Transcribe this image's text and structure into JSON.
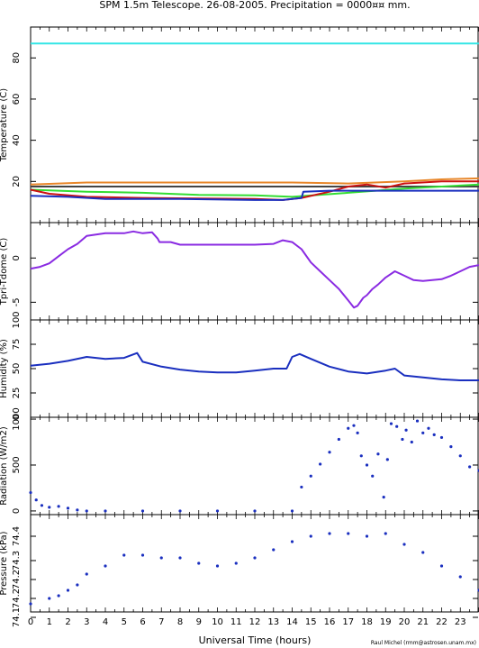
{
  "page": {
    "title": "SPM 1.5m Telescope. 26-08-2005. Precipitation = 0000¤¤ mm.",
    "xlabel": "Universal Time (hours)",
    "credit": "Raul Michel (rmm@astrosen.unam.mx)"
  },
  "colors": {
    "axis": "#000000",
    "cyan": "#33e6e6",
    "orange": "#e8872a",
    "dark": "#444444",
    "green": "#33dd33",
    "red": "#cc1111",
    "blue": "#1a2fbf",
    "purple": "#8a2be2"
  },
  "chart_data": [
    {
      "type": "line",
      "ylabel": "Temperature (C)",
      "xlim": [
        0,
        24
      ],
      "ylim": [
        0,
        95
      ],
      "xticks": [
        "0",
        "1",
        "2",
        "3",
        "4",
        "5",
        "6",
        "7",
        "8",
        "9",
        "10",
        "11",
        "12",
        "13",
        "14",
        "15",
        "16",
        "17",
        "18",
        "19",
        "20",
        "21",
        "22",
        "23"
      ],
      "yticks": [
        "20",
        "40",
        "60",
        "80"
      ],
      "series": [
        {
          "color": "cyan",
          "x": [
            0,
            24
          ],
          "y": [
            87,
            87
          ]
        },
        {
          "color": "orange",
          "x": [
            0,
            3,
            6,
            10,
            14,
            17,
            20,
            22,
            24
          ],
          "y": [
            18.5,
            19.5,
            19.5,
            19.5,
            19.5,
            19,
            20,
            21,
            21.5
          ]
        },
        {
          "color": "dark",
          "x": [
            0,
            6,
            12,
            14,
            16,
            18,
            20,
            22,
            24
          ],
          "y": [
            17.5,
            17.5,
            17.5,
            17.5,
            17.5,
            17.5,
            17.5,
            17.5,
            17.5
          ]
        },
        {
          "color": "green",
          "x": [
            0,
            3,
            6,
            9,
            12,
            14,
            17,
            20,
            24
          ],
          "y": [
            16,
            15,
            14.5,
            13.5,
            13.2,
            12.5,
            14.5,
            16.5,
            18.5
          ]
        },
        {
          "color": "red",
          "x": [
            0,
            1,
            3,
            6,
            9,
            12,
            13.5,
            14.5,
            16,
            17,
            18,
            19,
            20,
            22,
            24
          ],
          "y": [
            16,
            14,
            12.5,
            12,
            11.7,
            11.5,
            11,
            12,
            15,
            17.5,
            18.5,
            17,
            19,
            20,
            20
          ]
        },
        {
          "color": "blue",
          "x": [
            0,
            2,
            4,
            8,
            12,
            13.5,
            14.5,
            14.6,
            16,
            17.5,
            19,
            24
          ],
          "y": [
            13,
            12.5,
            11.5,
            11.5,
            11,
            11,
            12,
            15,
            15.5,
            15.5,
            15.5,
            15.5
          ]
        }
      ]
    },
    {
      "type": "line",
      "ylabel": "Tpri-Tdome (C)",
      "xlim": [
        0,
        24
      ],
      "ylim": [
        -7,
        4
      ],
      "yticks": [
        "-5",
        "0"
      ],
      "series": [
        {
          "color": "purple",
          "x": [
            0,
            0.5,
            1,
            1.5,
            2,
            2.5,
            3,
            4,
            5,
            5.5,
            6,
            6.5,
            6.8,
            6.9,
            7.5,
            8,
            9,
            10,
            11,
            12,
            13,
            13.5,
            14,
            14.5,
            15,
            15.5,
            16,
            16.5,
            17,
            17.3,
            17.5,
            17.8,
            18,
            18.3,
            18.6,
            19,
            19.5,
            20,
            20.5,
            21,
            21.5,
            22,
            22.5,
            23,
            23.5,
            24
          ],
          "y": [
            -1.2,
            -1,
            -0.6,
            0.2,
            1,
            1.6,
            2.5,
            2.8,
            2.8,
            3,
            2.8,
            2.9,
            2.2,
            1.8,
            1.8,
            1.5,
            1.5,
            1.5,
            1.5,
            1.5,
            1.6,
            2,
            1.8,
            1,
            -0.5,
            -1.5,
            -2.5,
            -3.5,
            -4.8,
            -5.6,
            -5.4,
            -4.5,
            -4.2,
            -3.5,
            -3,
            -2.2,
            -1.5,
            -2,
            -2.5,
            -2.6,
            -2.5,
            -2.4,
            -2,
            -1.5,
            -1,
            -0.8
          ]
        }
      ]
    },
    {
      "type": "line",
      "ylabel": "Humidity (%)",
      "xlim": [
        0,
        24
      ],
      "ylim": [
        0,
        100
      ],
      "yticks": [
        "0",
        "25",
        "50",
        "75",
        "100"
      ],
      "series": [
        {
          "color": "blue",
          "x": [
            0,
            1,
            2,
            3,
            4,
            5,
            5.7,
            6,
            7,
            8,
            9,
            10,
            11,
            12,
            13,
            13.7,
            14,
            14.4,
            15,
            16,
            17,
            18,
            19,
            19.5,
            20,
            21,
            22,
            23,
            24
          ],
          "y": [
            53,
            55,
            58,
            62,
            60,
            61,
            66,
            57,
            52,
            49,
            47,
            46,
            46,
            48,
            50,
            50,
            62,
            65,
            60,
            52,
            47,
            45,
            48,
            50,
            43,
            41,
            39,
            38,
            38
          ]
        }
      ]
    },
    {
      "type": "scatter",
      "ylabel": "Radiation (W/m2)",
      "xlim": [
        0,
        24
      ],
      "ylim": [
        -40,
        1020
      ],
      "yticks": [
        "0",
        "500",
        "1000"
      ],
      "series": [
        {
          "color": "blue",
          "x": [
            0,
            0.3,
            0.6,
            1,
            1.5,
            2,
            2.5,
            3,
            4,
            6,
            8,
            10,
            12,
            14,
            14.5,
            15,
            15.5,
            16,
            16.5,
            17,
            17.3,
            17.5,
            17.7,
            18,
            18.3,
            18.6,
            18.9,
            19.1,
            19.3,
            19.6,
            19.9,
            20.1,
            20.4,
            20.7,
            21,
            21.3,
            21.6,
            22,
            22.5,
            23,
            23.5,
            24
          ],
          "y": [
            200,
            120,
            60,
            40,
            50,
            30,
            10,
            0,
            0,
            0,
            0,
            0,
            0,
            0,
            260,
            380,
            510,
            640,
            780,
            900,
            930,
            850,
            600,
            500,
            380,
            620,
            150,
            560,
            950,
            920,
            780,
            880,
            750,
            980,
            850,
            900,
            830,
            800,
            700,
            600,
            480,
            440
          ]
        }
      ]
    },
    {
      "type": "scatter",
      "ylabel": "Pressure (kPa)",
      "xlim": [
        0,
        24
      ],
      "ylim": [
        74.12,
        74.48
      ],
      "yticks": [
        "74.1",
        "74.2",
        "74.2",
        "74.3",
        "74.4"
      ],
      "series": [
        {
          "color": "blue",
          "x": [
            0,
            1,
            1.5,
            2,
            2.5,
            3,
            4,
            5,
            6,
            7,
            8,
            9,
            10,
            11,
            12,
            13,
            14,
            15,
            16,
            17,
            18,
            19,
            20,
            21,
            22,
            23,
            24
          ],
          "y": [
            74.15,
            74.17,
            74.18,
            74.2,
            74.22,
            74.26,
            74.29,
            74.33,
            74.33,
            74.32,
            74.32,
            74.3,
            74.29,
            74.3,
            74.32,
            74.35,
            74.38,
            74.4,
            74.41,
            74.41,
            74.4,
            74.41,
            74.37,
            74.34,
            74.29,
            74.25,
            74.2
          ]
        }
      ]
    }
  ]
}
